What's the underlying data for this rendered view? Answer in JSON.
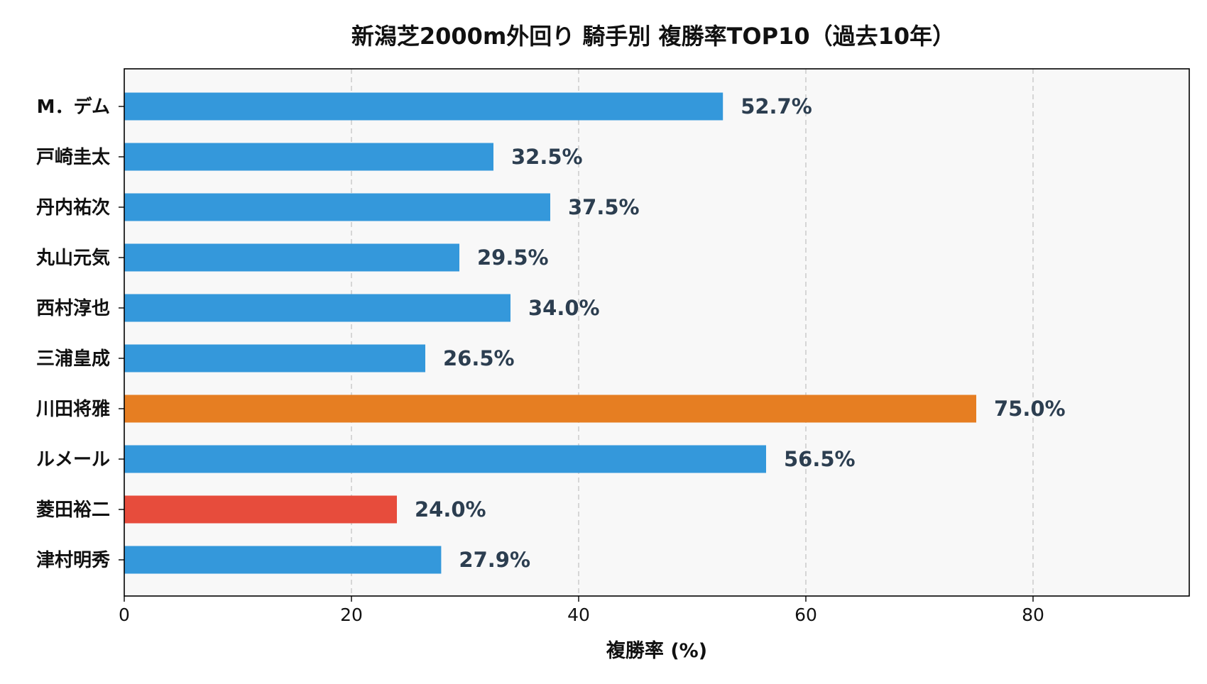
{
  "chart_data": {
    "type": "bar",
    "orientation": "horizontal",
    "title": "新潟芝2000m外回り 騎手別 複勝率TOP10（過去10年）",
    "xlabel": "複勝率 (%)",
    "ylabel": "",
    "xlim": [
      0,
      93.75
    ],
    "x_ticks": [
      "0",
      "20",
      "40",
      "60",
      "80"
    ],
    "grid": "vertical-dashed",
    "background_color": "#f8f8f8",
    "categories": [
      "M．デム",
      "戸崎圭太",
      "丹内祐次",
      "丸山元気",
      "西村淳也",
      "三浦皇成",
      "川田将雅",
      "ルメール",
      "菱田裕二",
      "津村明秀"
    ],
    "values": [
      52.7,
      32.5,
      37.5,
      29.5,
      34.0,
      26.5,
      75.0,
      56.5,
      24.0,
      27.9
    ],
    "value_labels": [
      "52.7%",
      "32.5%",
      "37.5%",
      "29.5%",
      "34.0%",
      "26.5%",
      "75.0%",
      "56.5%",
      "24.0%",
      "27.9%"
    ],
    "colors": [
      "#3498db",
      "#3498db",
      "#3498db",
      "#3498db",
      "#3498db",
      "#3498db",
      "#e67e22",
      "#3498db",
      "#e74c3c",
      "#3498db"
    ]
  }
}
